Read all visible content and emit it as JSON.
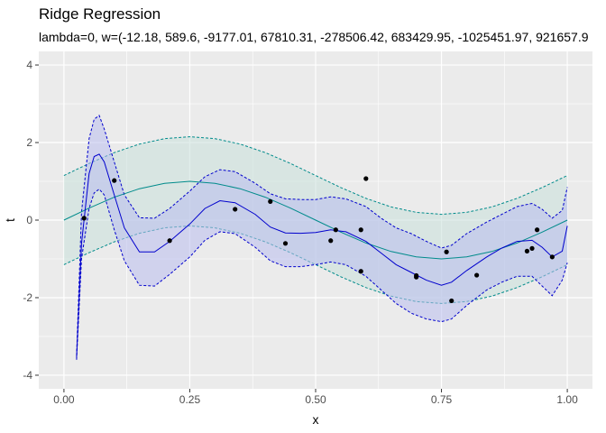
{
  "chart_data": {
    "type": "line",
    "title": "Ridge Regression",
    "subtitle": "lambda=0, w=(-12.18, 589.6, -9177.01, 67810.31, -278506.42, 683429.95, -1025451.97, 921657.9",
    "xlabel": "x",
    "ylabel": "t",
    "xlim": [
      -0.05,
      1.05
    ],
    "ylim": [
      -4.35,
      4.35
    ],
    "x_ticks": [
      "0.00",
      "0.25",
      "0.50",
      "0.75",
      "1.00"
    ],
    "x_tick_values": [
      0,
      0.25,
      0.5,
      0.75,
      1.0
    ],
    "y_ticks": [
      "-4",
      "-2",
      "0",
      "2",
      "4"
    ],
    "y_tick_values": [
      -4,
      -2,
      0,
      2,
      4
    ],
    "grid": true,
    "background": "#EBEBEB",
    "points": {
      "color": "#000000",
      "x": [
        0.04,
        0.1,
        0.21,
        0.34,
        0.41,
        0.44,
        0.53,
        0.54,
        0.59,
        0.59,
        0.6,
        0.7,
        0.7,
        0.76,
        0.77,
        0.82,
        0.92,
        0.93,
        0.94,
        0.97
      ],
      "y": [
        0.05,
        1.02,
        -0.53,
        0.28,
        0.48,
        -0.6,
        -0.53,
        -0.25,
        -1.32,
        -0.25,
        1.07,
        -1.47,
        -1.43,
        -0.82,
        -2.08,
        -1.42,
        -0.8,
        -0.73,
        -0.25,
        -0.95
      ]
    },
    "true_curve": {
      "line_color": "#008B8B",
      "band_color": "#C8E0DA",
      "x": [
        0.0,
        0.05,
        0.1,
        0.15,
        0.2,
        0.25,
        0.3,
        0.35,
        0.4,
        0.45,
        0.5,
        0.55,
        0.6,
        0.65,
        0.7,
        0.75,
        0.8,
        0.85,
        0.9,
        0.95,
        1.0
      ],
      "y": [
        0.0,
        0.31,
        0.59,
        0.81,
        0.95,
        1.0,
        0.95,
        0.81,
        0.59,
        0.31,
        0.0,
        -0.31,
        -0.59,
        -0.81,
        -0.95,
        -1.0,
        -0.95,
        -0.81,
        -0.59,
        -0.31,
        0.0
      ],
      "lower": [
        -1.15,
        -0.84,
        -0.56,
        -0.34,
        -0.2,
        -0.15,
        -0.2,
        -0.34,
        -0.56,
        -0.84,
        -1.15,
        -1.46,
        -1.74,
        -1.96,
        -2.1,
        -2.15,
        -2.1,
        -1.96,
        -1.74,
        -1.46,
        -1.15
      ],
      "upper": [
        1.15,
        1.46,
        1.74,
        1.96,
        2.1,
        2.15,
        2.1,
        1.96,
        1.74,
        1.46,
        1.15,
        0.84,
        0.56,
        0.34,
        0.2,
        0.15,
        0.2,
        0.34,
        0.56,
        0.84,
        1.15
      ]
    },
    "fitted_curve": {
      "line_color": "#0000CD",
      "band_color": "#B9BEEF",
      "x": [
        0.025,
        0.035,
        0.05,
        0.06,
        0.07,
        0.08,
        0.1,
        0.12,
        0.15,
        0.18,
        0.21,
        0.25,
        0.28,
        0.31,
        0.34,
        0.38,
        0.41,
        0.44,
        0.47,
        0.5,
        0.53,
        0.56,
        0.6,
        0.63,
        0.66,
        0.69,
        0.72,
        0.75,
        0.77,
        0.8,
        0.84,
        0.87,
        0.9,
        0.93,
        0.95,
        0.97,
        0.99,
        1.0
      ],
      "y": [
        -3.55,
        -0.6,
        1.2,
        1.64,
        1.7,
        1.5,
        0.65,
        -0.2,
        -0.82,
        -0.82,
        -0.55,
        -0.1,
        0.3,
        0.5,
        0.45,
        0.15,
        -0.18,
        -0.33,
        -0.34,
        -0.32,
        -0.25,
        -0.3,
        -0.55,
        -0.85,
        -1.15,
        -1.35,
        -1.55,
        -1.68,
        -1.6,
        -1.3,
        -0.95,
        -0.72,
        -0.55,
        -0.52,
        -0.7,
        -0.95,
        -0.8,
        -0.15
      ],
      "lower": [
        -3.6,
        -1.0,
        0.3,
        0.7,
        0.8,
        0.65,
        -0.25,
        -1.05,
        -1.68,
        -1.7,
        -1.4,
        -0.95,
        -0.52,
        -0.3,
        -0.35,
        -0.7,
        -1.05,
        -1.2,
        -1.2,
        -1.15,
        -1.08,
        -1.15,
        -1.45,
        -1.8,
        -2.15,
        -2.4,
        -2.55,
        -2.62,
        -2.55,
        -2.2,
        -1.8,
        -1.6,
        -1.45,
        -1.45,
        -1.7,
        -1.95,
        -1.55,
        -1.1
      ],
      "upper": [
        -3.5,
        0.2,
        2.1,
        2.6,
        2.7,
        2.35,
        1.5,
        0.65,
        0.06,
        0.05,
        0.3,
        0.75,
        1.12,
        1.3,
        1.25,
        0.95,
        0.68,
        0.55,
        0.53,
        0.53,
        0.6,
        0.55,
        0.35,
        0.05,
        -0.2,
        -0.35,
        -0.55,
        -0.72,
        -0.65,
        -0.35,
        -0.05,
        0.15,
        0.35,
        0.43,
        0.28,
        0.05,
        0.25,
        0.85
      ]
    }
  }
}
